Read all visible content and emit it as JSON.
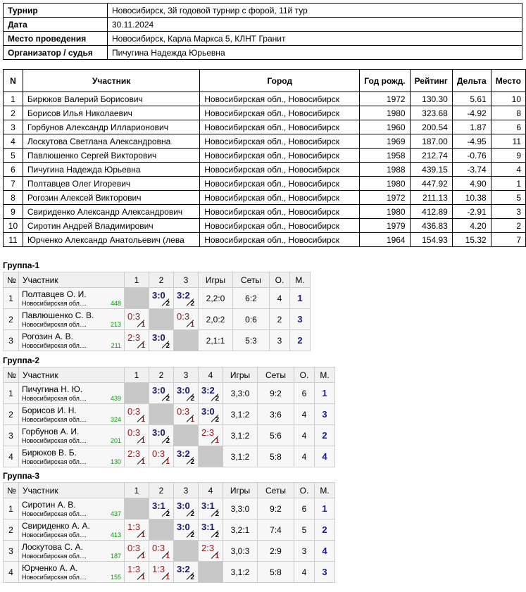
{
  "info": [
    [
      "Турнир",
      "Новосибирск, 3й годовой турнир с форой, 11й тур"
    ],
    [
      "Дата",
      "30.11.2024"
    ],
    [
      "Место проведения",
      "Новосибирск, Карла Маркса 5, КЛНТ Гранит"
    ],
    [
      "Организатор / судья",
      "Пичугина Надежда Юрьевна"
    ]
  ],
  "players": {
    "header": [
      "N",
      "Участник",
      "Город",
      "Год рожд.",
      "Рейтинг",
      "Дельта",
      "Место"
    ],
    "rows": [
      [
        "1",
        "Бирюков Валерий Борисович",
        "Новосибирская обл., Новосибирск",
        "1972",
        "130.30",
        "5.61",
        "10"
      ],
      [
        "2",
        "Борисов Илья Николаевич",
        "Новосибирская обл., Новосибирск",
        "1980",
        "323.68",
        "-4.92",
        "8"
      ],
      [
        "3",
        "Горбунов Александр Илларионович",
        "Новосибирская обл., Новосибирск",
        "1960",
        "200.54",
        "1.87",
        "6"
      ],
      [
        "4",
        "Лоскутова Светлана Александровна",
        "Новосибирская обл., Новосибирск",
        "1969",
        "187.00",
        "-4.95",
        "11"
      ],
      [
        "5",
        "Павлюшенко Сергей Викторович",
        "Новосибирская обл., Новосибирск",
        "1958",
        "212.74",
        "-0.76",
        "9"
      ],
      [
        "6",
        "Пичугина Надежда Юрьевна",
        "Новосибирская обл., Новосибирск",
        "1988",
        "439.15",
        "-3.74",
        "4"
      ],
      [
        "7",
        "Полтавцев Олег Игоревич",
        "Новосибирская обл., Новосибирск",
        "1980",
        "447.92",
        "4.90",
        "1"
      ],
      [
        "8",
        "Рогозин Алексей Викторович",
        "Новосибирская обл., Новосибирск",
        "1972",
        "211.13",
        "10.38",
        "5"
      ],
      [
        "9",
        "Свириденко Александр Александрович",
        "Новосибирская обл., Новосибирск",
        "1980",
        "412.89",
        "-2.91",
        "3"
      ],
      [
        "10",
        "Сиротин Андрей Владимирович",
        "Новосибирская обл., Новосибирск",
        "1979",
        "436.83",
        "4.20",
        "2"
      ],
      [
        "11",
        "Юрченко Александр Анатольевич (лева",
        "Новосибирская обл., Новосибирск",
        "1964",
        "154.93",
        "15.32",
        "7"
      ]
    ]
  },
  "groups": [
    {
      "title": "Группа-1",
      "header": [
        "№",
        "Участник",
        "1",
        "2",
        "3",
        "Игры",
        "Сеты",
        "О.",
        "М."
      ],
      "rows": [
        {
          "n": "1",
          "name": "Полтавцев О. И.",
          "city": "Новосибирская обл....",
          "rating": "448",
          "cells": [
            null,
            {
              "score": "3:0",
              "pts": "2"
            },
            {
              "score": "3:2",
              "pts": "2"
            }
          ],
          "games": "2,2:0",
          "sets": "6:2",
          "o": "4",
          "m": "1"
        },
        {
          "n": "2",
          "name": "Павлюшенко С. В.",
          "city": "Новосибирская обл....",
          "rating": "213",
          "cells": [
            {
              "score": "0:3",
              "pts": "1"
            },
            null,
            {
              "score": "0:3",
              "pts": "1"
            }
          ],
          "games": "2,0:2",
          "sets": "0:6",
          "o": "2",
          "m": "3"
        },
        {
          "n": "3",
          "name": "Рогозин А. В.",
          "city": "Новосибирская обл....",
          "rating": "211",
          "cells": [
            {
              "score": "2:3",
              "pts": "1"
            },
            {
              "score": "3:0",
              "pts": "2"
            },
            null
          ],
          "games": "2,1:1",
          "sets": "5:3",
          "o": "3",
          "m": "2"
        }
      ]
    },
    {
      "title": "Группа-2",
      "header": [
        "№",
        "Участник",
        "1",
        "2",
        "3",
        "4",
        "Игры",
        "Сеты",
        "О.",
        "М."
      ],
      "rows": [
        {
          "n": "1",
          "name": "Пичугина Н. Ю.",
          "city": "Новосибирская обл....",
          "rating": "439",
          "cells": [
            null,
            {
              "score": "3:0",
              "pts": "2"
            },
            {
              "score": "3:0",
              "pts": "2"
            },
            {
              "score": "3:2",
              "pts": "2"
            }
          ],
          "games": "3,3:0",
          "sets": "9:2",
          "o": "6",
          "m": "1"
        },
        {
          "n": "2",
          "name": "Борисов И. Н.",
          "city": "Новосибирская обл....",
          "rating": "324",
          "cells": [
            {
              "score": "0:3",
              "pts": "1"
            },
            null,
            {
              "score": "0:3",
              "pts": "1"
            },
            {
              "score": "3:0",
              "pts": "2"
            }
          ],
          "games": "3,1:2",
          "sets": "3:6",
          "o": "4",
          "m": "3"
        },
        {
          "n": "3",
          "name": "Горбунов А. И.",
          "city": "Новосибирская обл....",
          "rating": "201",
          "cells": [
            {
              "score": "0:3",
              "pts": "1"
            },
            {
              "score": "3:0",
              "pts": "2"
            },
            null,
            {
              "score": "2:3",
              "pts": "1"
            }
          ],
          "games": "3,1:2",
          "sets": "5:6",
          "o": "4",
          "m": "2"
        },
        {
          "n": "4",
          "name": "Бирюков В. Б.",
          "city": "Новосибирская обл....",
          "rating": "130",
          "cells": [
            {
              "score": "2:3",
              "pts": "1"
            },
            {
              "score": "0:3",
              "pts": "1"
            },
            {
              "score": "3:2",
              "pts": "2"
            },
            null
          ],
          "games": "3,1:2",
          "sets": "5:8",
          "o": "4",
          "m": "4"
        }
      ]
    },
    {
      "title": "Группа-3",
      "header": [
        "№",
        "Участник",
        "1",
        "2",
        "3",
        "4",
        "Игры",
        "Сеты",
        "О.",
        "М."
      ],
      "rows": [
        {
          "n": "1",
          "name": "Сиротин А. В.",
          "city": "Новосибирская обл....",
          "rating": "437",
          "cells": [
            null,
            {
              "score": "3:1",
              "pts": "2"
            },
            {
              "score": "3:0",
              "pts": "2"
            },
            {
              "score": "3:1",
              "pts": "2"
            }
          ],
          "games": "3,3:0",
          "sets": "9:2",
          "o": "6",
          "m": "1"
        },
        {
          "n": "2",
          "name": "Свириденко А. А.",
          "city": "Новосибирская обл....",
          "rating": "413",
          "cells": [
            {
              "score": "1:3",
              "pts": "1"
            },
            null,
            {
              "score": "3:0",
              "pts": "2"
            },
            {
              "score": "3:1",
              "pts": "2"
            }
          ],
          "games": "3,2:1",
          "sets": "7:4",
          "o": "5",
          "m": "2"
        },
        {
          "n": "3",
          "name": "Лоскутова С. А.",
          "city": "Новосибирская обл....",
          "rating": "187",
          "cells": [
            {
              "score": "0:3",
              "pts": "1"
            },
            {
              "score": "0:3",
              "pts": "1"
            },
            null,
            {
              "score": "2:3",
              "pts": "1"
            }
          ],
          "games": "3,0:3",
          "sets": "2:9",
          "o": "3",
          "m": "4"
        },
        {
          "n": "4",
          "name": "Юрченко А. А.",
          "city": "Новосибирская обл....",
          "rating": "155",
          "cells": [
            {
              "score": "1:3",
              "pts": "1"
            },
            {
              "score": "1:3",
              "pts": "1"
            },
            {
              "score": "3:2",
              "pts": "2"
            },
            null
          ],
          "games": "3,1:2",
          "sets": "5:8",
          "o": "4",
          "m": "3"
        }
      ]
    }
  ]
}
